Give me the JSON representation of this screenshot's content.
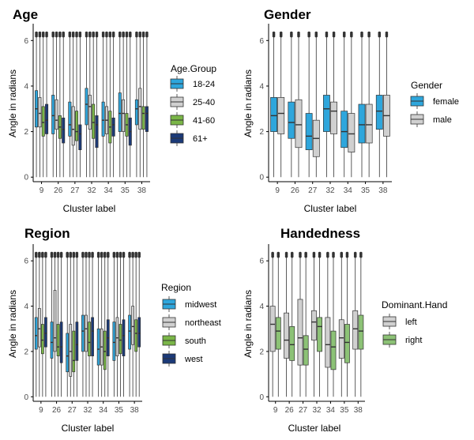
{
  "colors": {
    "blue_light": "#2ea6dc",
    "grey_light": "#d0d0d0",
    "green": "#7ab648",
    "navy": "#1b3a78",
    "green_light": "#8cc276",
    "box_line": "#333333",
    "outlier": "#333333",
    "axis": "#000000"
  },
  "chart_data": [
    {
      "type": "boxplot",
      "title": "Age",
      "xlabel": "Cluster label",
      "ylabel": "Angle in radians",
      "categories": [
        "9",
        "26",
        "27",
        "32",
        "34",
        "35",
        "38"
      ],
      "yticks": [
        "0",
        "2",
        "4",
        "6"
      ],
      "ylim": [
        -0.2,
        6.6
      ],
      "legend_title": "Age.Group",
      "legend_position": "right",
      "series": [
        {
          "name": "18-24",
          "color": "blue_light",
          "boxes": [
            [
              0,
              2.2,
              3.0,
              3.8,
              6.3
            ],
            [
              0,
              1.9,
              2.7,
              3.6,
              6.3
            ],
            [
              0,
              1.8,
              2.3,
              3.3,
              6.3
            ],
            [
              0,
              2.3,
              3.2,
              3.9,
              6.3
            ],
            [
              0,
              1.8,
              2.5,
              3.3,
              6.3
            ],
            [
              0,
              2.0,
              2.8,
              3.7,
              6.3
            ],
            [
              0,
              2.3,
              3.0,
              3.4,
              6.3
            ]
          ]
        },
        {
          "name": "25-40",
          "color": "grey_light",
          "boxes": [
            [
              0,
              2.2,
              2.8,
              3.5,
              6.3
            ],
            [
              0,
              2.1,
              2.5,
              3.4,
              6.3
            ],
            [
              0,
              1.4,
              2.1,
              3.1,
              6.3
            ],
            [
              0,
              2.1,
              3.1,
              3.6,
              6.3
            ],
            [
              0,
              1.9,
              2.5,
              3.1,
              6.3
            ],
            [
              0,
              2.0,
              2.8,
              3.4,
              6.3
            ],
            [
              0,
              2.1,
              3.1,
              3.9,
              6.3
            ]
          ]
        },
        {
          "name": "41-60",
          "color": "green",
          "boxes": [
            [
              0,
              1.8,
              2.4,
              3.1,
              6.3
            ],
            [
              0,
              1.7,
              2.2,
              2.7,
              6.3
            ],
            [
              0,
              1.6,
              2.0,
              2.9,
              6.3
            ],
            [
              0,
              1.7,
              2.4,
              3.2,
              6.3
            ],
            [
              0,
              1.5,
              2.2,
              2.9,
              6.3
            ],
            [
              0,
              1.8,
              2.3,
              2.8,
              6.3
            ],
            [
              0,
              2.1,
              2.8,
              3.1,
              6.3
            ]
          ]
        },
        {
          "name": "61+",
          "color": "navy",
          "boxes": [
            [
              0,
              1.9,
              2.5,
              3.2,
              6.3
            ],
            [
              0,
              1.5,
              2.1,
              2.6,
              6.3
            ],
            [
              0,
              1.2,
              1.9,
              2.3,
              6.3
            ],
            [
              0,
              1.3,
              2.3,
              2.7,
              6.3
            ],
            [
              0,
              1.8,
              2.3,
              2.6,
              6.3
            ],
            [
              0,
              1.4,
              2.0,
              2.6,
              6.3
            ],
            [
              0,
              2.0,
              2.8,
              3.1,
              6.3
            ]
          ]
        }
      ]
    },
    {
      "type": "boxplot",
      "title": "Gender",
      "xlabel": "Cluster label",
      "ylabel": "Angle in radians",
      "categories": [
        "9",
        "26",
        "27",
        "32",
        "34",
        "35",
        "38"
      ],
      "yticks": [
        "0",
        "2",
        "4",
        "6"
      ],
      "ylim": [
        -0.2,
        6.6
      ],
      "legend_title": "Gender",
      "legend_position": "right",
      "series": [
        {
          "name": "female",
          "color": "blue_light",
          "boxes": [
            [
              0,
              2.0,
              2.7,
              3.5,
              6.3
            ],
            [
              0,
              1.7,
              2.4,
              3.3,
              6.3
            ],
            [
              0,
              1.2,
              1.8,
              2.8,
              6.3
            ],
            [
              0,
              2.0,
              3.0,
              3.6,
              6.3
            ],
            [
              0,
              1.3,
              2.0,
              2.9,
              6.3
            ],
            [
              0,
              1.5,
              2.3,
              3.2,
              6.3
            ],
            [
              0,
              2.1,
              2.9,
              3.6,
              6.3
            ]
          ]
        },
        {
          "name": "male",
          "color": "grey_light",
          "boxes": [
            [
              0,
              1.9,
              2.8,
              3.5,
              6.3
            ],
            [
              0,
              1.3,
              2.3,
              3.4,
              6.3
            ],
            [
              0,
              0.9,
              1.7,
              2.5,
              6.3
            ],
            [
              0,
              1.9,
              2.9,
              3.3,
              6.3
            ],
            [
              0,
              1.1,
              1.9,
              2.8,
              6.3
            ],
            [
              0,
              1.5,
              2.3,
              3.2,
              6.3
            ],
            [
              0,
              1.8,
              2.7,
              3.6,
              6.3
            ]
          ]
        }
      ]
    },
    {
      "type": "boxplot",
      "title": "Region",
      "xlabel": "Cluster label",
      "ylabel": "Angle in radians",
      "categories": [
        "9",
        "26",
        "27",
        "32",
        "34",
        "35",
        "38"
      ],
      "yticks": [
        "0",
        "2",
        "4",
        "6"
      ],
      "ylim": [
        -0.2,
        6.6
      ],
      "legend_title": "Region",
      "legend_position": "right",
      "series": [
        {
          "name": "midwest",
          "color": "blue_light",
          "boxes": [
            [
              0,
              2.1,
              2.7,
              3.5,
              6.3
            ],
            [
              0,
              1.7,
              2.4,
              3.3,
              6.3
            ],
            [
              0,
              1.1,
              1.8,
              2.8,
              6.3
            ],
            [
              0,
              2.0,
              2.9,
              3.6,
              6.3
            ],
            [
              0,
              1.4,
              2.1,
              3.0,
              6.3
            ],
            [
              0,
              1.6,
              2.4,
              3.3,
              6.3
            ],
            [
              0,
              2.1,
              2.9,
              3.6,
              6.3
            ]
          ]
        },
        {
          "name": "northeast",
          "color": "grey_light",
          "boxes": [
            [
              0,
              2.2,
              3.0,
              3.9,
              6.3
            ],
            [
              0,
              2.0,
              2.6,
              4.7,
              6.3
            ],
            [
              0,
              0.9,
              2.0,
              3.2,
              6.3
            ],
            [
              0,
              2.0,
              3.0,
              3.6,
              6.3
            ],
            [
              0,
              1.4,
              2.2,
              3.0,
              6.3
            ],
            [
              0,
              1.8,
              2.6,
              3.5,
              6.3
            ],
            [
              0,
              2.3,
              3.1,
              4.0,
              6.3
            ]
          ]
        },
        {
          "name": "south",
          "color": "green",
          "boxes": [
            [
              0,
              1.9,
              2.5,
              3.2,
              6.3
            ],
            [
              0,
              1.8,
              2.2,
              3.2,
              6.3
            ],
            [
              0,
              1.1,
              1.6,
              2.9,
              6.3
            ],
            [
              0,
              1.8,
              2.4,
              3.3,
              6.3
            ],
            [
              0,
              1.2,
              2.0,
              2.9,
              6.3
            ],
            [
              0,
              1.9,
              2.5,
              3.2,
              6.3
            ],
            [
              0,
              2.0,
              2.8,
              3.4,
              6.3
            ]
          ]
        },
        {
          "name": "west",
          "color": "navy",
          "boxes": [
            [
              0,
              2.2,
              2.8,
              3.5,
              6.3
            ],
            [
              0,
              1.5,
              2.2,
              3.3,
              6.3
            ],
            [
              0,
              1.6,
              2.3,
              3.3,
              6.3
            ],
            [
              0,
              1.8,
              2.9,
              3.5,
              6.3
            ],
            [
              0,
              1.8,
              2.6,
              3.4,
              6.3
            ],
            [
              0,
              1.8,
              2.7,
              3.4,
              6.3
            ],
            [
              0,
              2.2,
              2.8,
              3.5,
              6.3
            ]
          ]
        }
      ]
    },
    {
      "type": "boxplot",
      "title": "Handedness",
      "xlabel": "Cluster label",
      "ylabel": "Angle in radians",
      "categories": [
        "9",
        "26",
        "27",
        "32",
        "34",
        "35",
        "38"
      ],
      "yticks": [
        "0",
        "2",
        "4",
        "6"
      ],
      "ylim": [
        -0.2,
        6.6
      ],
      "legend_title": "Dominant.Hand",
      "legend_position": "right",
      "series": [
        {
          "name": "left",
          "color": "grey_light",
          "boxes": [
            [
              0,
              2.0,
              3.2,
              4.0,
              6.3
            ],
            [
              0,
              1.7,
              2.5,
              3.7,
              6.3
            ],
            [
              0,
              1.4,
              2.6,
              4.3,
              6.3
            ],
            [
              0,
              2.5,
              3.3,
              3.8,
              6.3
            ],
            [
              0,
              1.3,
              2.3,
              3.5,
              6.3
            ],
            [
              0,
              1.7,
              2.6,
              3.4,
              6.3
            ],
            [
              0,
              2.1,
              3.0,
              3.8,
              6.3
            ]
          ]
        },
        {
          "name": "right",
          "color": "green_light",
          "boxes": [
            [
              0,
              2.1,
              2.9,
              3.5,
              6.3
            ],
            [
              0,
              1.6,
              2.3,
              3.1,
              6.3
            ],
            [
              0,
              1.4,
              2.1,
              2.7,
              6.3
            ],
            [
              0,
              2.0,
              3.1,
              3.5,
              6.3
            ],
            [
              0,
              1.2,
              2.2,
              2.9,
              6.3
            ],
            [
              0,
              1.5,
              2.4,
              3.2,
              6.3
            ],
            [
              0,
              2.1,
              2.9,
              3.6,
              6.3
            ]
          ]
        }
      ]
    }
  ]
}
